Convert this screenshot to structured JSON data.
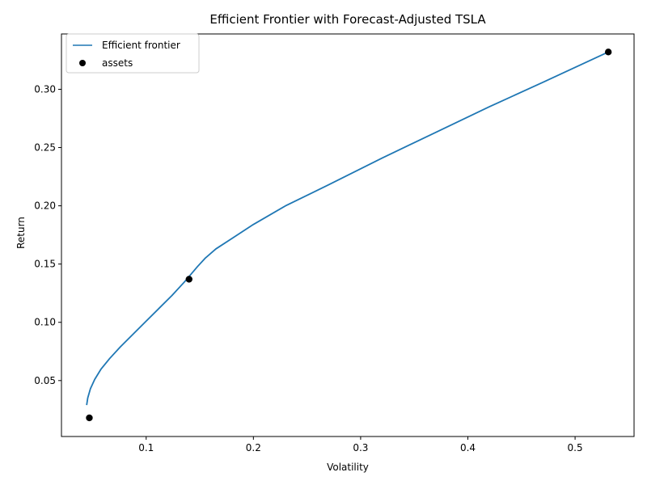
{
  "chart_data": {
    "type": "line",
    "title": "Efficient Frontier with Forecast-Adjusted TSLA",
    "xlabel": "Volatility",
    "ylabel": "Return",
    "xlim": [
      0.021,
      0.555
    ],
    "ylim": [
      0.002,
      0.3475
    ],
    "xticks": [
      0.1,
      0.2,
      0.3,
      0.4,
      0.5
    ],
    "xtick_labels": [
      "0.1",
      "0.2",
      "0.3",
      "0.4",
      "0.5"
    ],
    "yticks": [
      0.05,
      0.1,
      0.15,
      0.2,
      0.25,
      0.3
    ],
    "ytick_labels": [
      "0.05",
      "0.10",
      "0.15",
      "0.20",
      "0.25",
      "0.30"
    ],
    "grid": false,
    "legend_position": "top-left",
    "series": [
      {
        "name": "Efficient frontier",
        "kind": "line",
        "color": "#1f77b4",
        "x": [
          0.0445,
          0.0455,
          0.048,
          0.052,
          0.058,
          0.066,
          0.076,
          0.088,
          0.1,
          0.112,
          0.124,
          0.136,
          0.148,
          0.155,
          0.165,
          0.18,
          0.2,
          0.23,
          0.27,
          0.32,
          0.37,
          0.42,
          0.47,
          0.531
        ],
        "y": [
          0.029,
          0.035,
          0.043,
          0.051,
          0.06,
          0.069,
          0.079,
          0.09,
          0.101,
          0.112,
          0.123,
          0.135,
          0.148,
          0.155,
          0.163,
          0.172,
          0.184,
          0.2,
          0.218,
          0.241,
          0.263,
          0.285,
          0.306,
          0.332
        ]
      },
      {
        "name": "assets",
        "kind": "scatter",
        "color": "#000000",
        "x": [
          0.047,
          0.14,
          0.531
        ],
        "y": [
          0.018,
          0.137,
          0.332
        ]
      }
    ]
  }
}
